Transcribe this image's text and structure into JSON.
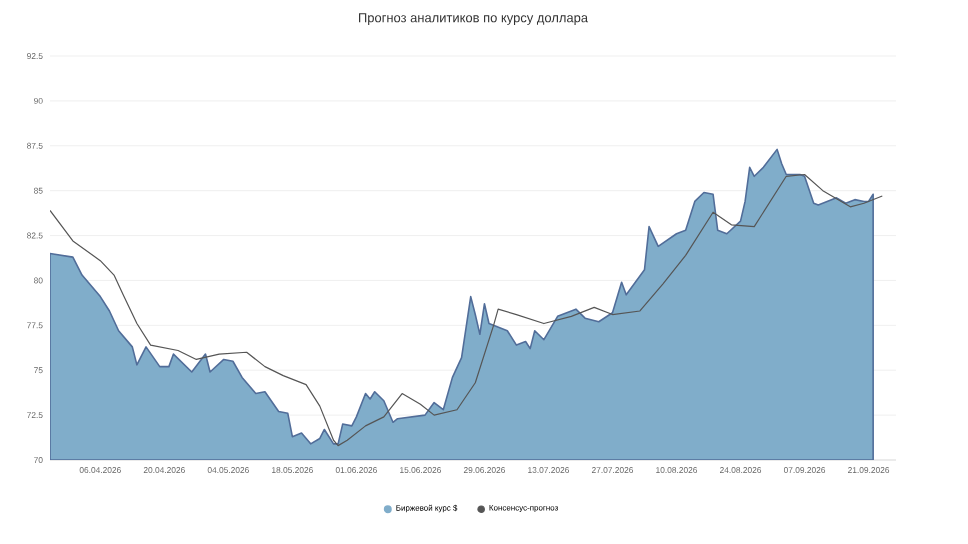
{
  "chart_data": {
    "type": "area",
    "title": "Прогноз аналитиков по курсу доллара",
    "xlim": [
      "2026-03-26",
      "2026-09-27"
    ],
    "xticks": [
      {
        "value": "2026-04-06",
        "label": "06.04.2026"
      },
      {
        "value": "2026-04-20",
        "label": "20.04.2026"
      },
      {
        "value": "2026-05-04",
        "label": "04.05.2026"
      },
      {
        "value": "2026-05-18",
        "label": "18.05.2026"
      },
      {
        "value": "2026-06-01",
        "label": "01.06.2026"
      },
      {
        "value": "2026-06-15",
        "label": "15.06.2026"
      },
      {
        "value": "2026-06-29",
        "label": "29.06.2026"
      },
      {
        "value": "2026-07-13",
        "label": "13.07.2026"
      },
      {
        "value": "2026-07-27",
        "label": "27.07.2026"
      },
      {
        "value": "2026-08-10",
        "label": "10.08.2026"
      },
      {
        "value": "2026-08-24",
        "label": "24.08.2026"
      },
      {
        "value": "2026-09-07",
        "label": "07.09.2026"
      },
      {
        "value": "2026-09-21",
        "label": "21.09.2026"
      }
    ],
    "ylim": [
      70,
      92.5
    ],
    "yticks": [
      70,
      72.5,
      75,
      77.5,
      80,
      82.5,
      85,
      87.5,
      90,
      92.5
    ],
    "grid": "y",
    "legend": "bottom",
    "series": [
      {
        "name": "Биржевой курс $",
        "color": "#80adca",
        "x": [
          "2026-03-26",
          "2026-03-31",
          "2026-04-02",
          "2026-04-06",
          "2026-04-08",
          "2026-04-10",
          "2026-04-13",
          "2026-04-14",
          "2026-04-16",
          "2026-04-19",
          "2026-04-21",
          "2026-04-22",
          "2026-04-26",
          "2026-04-29",
          "2026-04-30",
          "2026-05-03",
          "2026-05-05",
          "2026-05-07",
          "2026-05-10",
          "2026-05-12",
          "2026-05-15",
          "2026-05-17",
          "2026-05-18",
          "2026-05-20",
          "2026-05-22",
          "2026-05-24",
          "2026-05-25",
          "2026-05-27",
          "2026-05-28",
          "2026-05-29",
          "2026-05-31",
          "2026-06-01",
          "2026-06-03",
          "2026-06-04",
          "2026-06-05",
          "2026-06-07",
          "2026-06-09",
          "2026-06-10",
          "2026-06-16",
          "2026-06-18",
          "2026-06-20",
          "2026-06-22",
          "2026-06-24",
          "2026-06-26",
          "2026-06-27",
          "2026-06-28",
          "2026-06-29",
          "2026-06-30",
          "2026-07-04",
          "2026-07-06",
          "2026-07-08",
          "2026-07-09",
          "2026-07-10",
          "2026-07-12",
          "2026-07-15",
          "2026-07-19",
          "2026-07-21",
          "2026-07-24",
          "2026-07-27",
          "2026-07-29",
          "2026-07-30",
          "2026-08-03",
          "2026-08-04",
          "2026-08-06",
          "2026-08-10",
          "2026-08-12",
          "2026-08-14",
          "2026-08-16",
          "2026-08-18",
          "2026-08-19",
          "2026-08-21",
          "2026-08-24",
          "2026-08-25",
          "2026-08-26",
          "2026-08-27",
          "2026-08-29",
          "2026-09-01",
          "2026-09-02",
          "2026-09-03",
          "2026-09-06",
          "2026-09-07",
          "2026-09-09",
          "2026-09-10",
          "2026-09-14",
          "2026-09-16",
          "2026-09-18",
          "2026-09-20",
          "2026-09-21",
          "2026-09-22"
        ],
        "values": [
          81.5,
          81.3,
          80.3,
          79.1,
          78.3,
          77.2,
          76.3,
          75.3,
          76.3,
          75.2,
          75.2,
          75.9,
          74.9,
          75.9,
          74.9,
          75.6,
          75.5,
          74.6,
          73.7,
          73.8,
          72.7,
          72.6,
          71.3,
          71.5,
          70.9,
          71.2,
          71.7,
          70.9,
          70.9,
          72.0,
          71.9,
          72.4,
          73.7,
          73.4,
          73.8,
          73.3,
          72.1,
          72.3,
          72.5,
          73.2,
          72.8,
          74.6,
          75.7,
          79.1,
          78.1,
          77.0,
          78.7,
          77.6,
          77.2,
          76.4,
          76.6,
          76.2,
          77.2,
          76.7,
          78.0,
          78.4,
          77.9,
          77.7,
          78.2,
          79.9,
          79.2,
          80.6,
          83.0,
          81.9,
          82.6,
          82.8,
          84.4,
          84.9,
          84.8,
          82.8,
          82.6,
          83.3,
          84.4,
          86.3,
          85.8,
          86.3,
          87.3,
          86.5,
          85.9,
          85.9,
          85.8,
          84.3,
          84.2,
          84.6,
          84.3,
          84.5,
          84.4,
          84.4,
          84.8
        ]
      },
      {
        "name": "Консенсус-прогноз",
        "type": "line",
        "color": "#555555",
        "x": [
          "2026-03-26",
          "2026-03-31",
          "2026-04-06",
          "2026-04-09",
          "2026-04-11",
          "2026-04-14",
          "2026-04-17",
          "2026-04-23",
          "2026-04-27",
          "2026-05-02",
          "2026-05-08",
          "2026-05-12",
          "2026-05-16",
          "2026-05-21",
          "2026-05-24",
          "2026-05-27",
          "2026-05-28",
          "2026-05-30",
          "2026-06-03",
          "2026-06-07",
          "2026-06-11",
          "2026-06-15",
          "2026-06-18",
          "2026-06-23",
          "2026-06-27",
          "2026-07-01",
          "2026-07-02",
          "2026-07-06",
          "2026-07-12",
          "2026-07-18",
          "2026-07-23",
          "2026-07-27",
          "2026-08-02",
          "2026-08-07",
          "2026-08-12",
          "2026-08-18",
          "2026-08-22",
          "2026-08-27",
          "2026-09-03",
          "2026-09-07",
          "2026-09-11",
          "2026-09-17",
          "2026-09-20",
          "2026-09-24"
        ],
        "values": [
          83.9,
          82.2,
          81.1,
          80.3,
          79.2,
          77.6,
          76.4,
          76.1,
          75.6,
          75.9,
          76.0,
          75.2,
          74.7,
          74.2,
          73.0,
          71.1,
          70.8,
          71.1,
          71.9,
          72.4,
          73.7,
          73.1,
          72.5,
          72.8,
          74.3,
          77.5,
          78.4,
          78.1,
          77.6,
          78.0,
          78.5,
          78.1,
          78.3,
          79.8,
          81.4,
          83.8,
          83.1,
          83.0,
          85.8,
          85.9,
          85.0,
          84.1,
          84.3,
          84.7
        ]
      }
    ]
  }
}
